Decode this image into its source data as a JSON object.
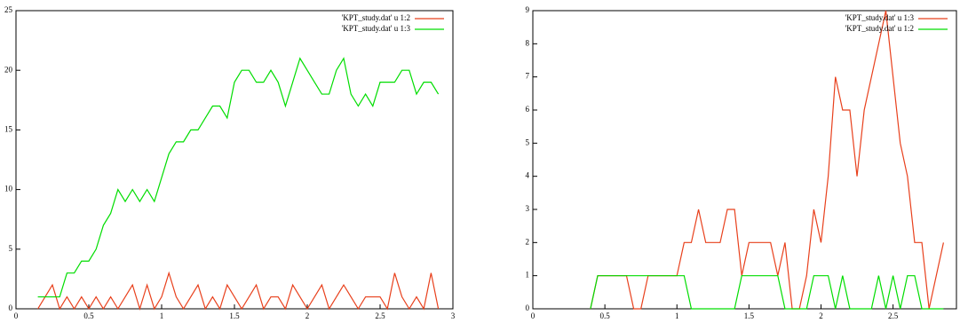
{
  "chart_data": [
    {
      "type": "line",
      "x": [
        0.15,
        0.2,
        0.25,
        0.3,
        0.35,
        0.4,
        0.45,
        0.5,
        0.55,
        0.6,
        0.65,
        0.7,
        0.75,
        0.8,
        0.85,
        0.9,
        0.95,
        1,
        1.05,
        1.1,
        1.15,
        1.2,
        1.25,
        1.3,
        1.35,
        1.4,
        1.45,
        1.5,
        1.55,
        1.6,
        1.65,
        1.7,
        1.75,
        1.8,
        1.85,
        1.9,
        1.95,
        2,
        2.05,
        2.1,
        2.15,
        2.2,
        2.25,
        2.3,
        2.35,
        2.4,
        2.45,
        2.5,
        2.55,
        2.6,
        2.65,
        2.7,
        2.75,
        2.8,
        2.85,
        2.9
      ],
      "series": [
        {
          "name": "'KPT_study.dat' u 1:2",
          "color": "#e8401c",
          "values": [
            0,
            1,
            2,
            0,
            1,
            0,
            1,
            0,
            1,
            0,
            1,
            0,
            1,
            2,
            0,
            2,
            0,
            1,
            3,
            1,
            0,
            1,
            2,
            0,
            1,
            0,
            2,
            1,
            0,
            1,
            2,
            0,
            1,
            1,
            0,
            2,
            1,
            0,
            1,
            2,
            0,
            1,
            2,
            1,
            0,
            1,
            1,
            1,
            0,
            3,
            1,
            0,
            1,
            0,
            3,
            0
          ]
        },
        {
          "name": "'KPT_study.dat' u 1:3",
          "color": "#00dd00",
          "values": [
            1,
            1,
            1,
            1,
            3,
            3,
            4,
            4,
            5,
            7,
            8,
            10,
            9,
            10,
            9,
            10,
            9,
            11,
            13,
            14,
            14,
            15,
            15,
            16,
            17,
            17,
            16,
            19,
            20,
            20,
            19,
            19,
            20,
            19,
            17,
            19,
            21,
            20,
            19,
            18,
            18,
            20,
            21,
            18,
            17,
            18,
            17,
            19,
            19,
            19,
            20,
            20,
            18,
            19,
            19,
            18
          ]
        }
      ],
      "xlim": [
        0,
        3
      ],
      "xticks": [
        0,
        0.5,
        1,
        1.5,
        2,
        2.5,
        3
      ],
      "ylim": [
        0,
        25
      ],
      "yticks": [
        0,
        5,
        10,
        15,
        20,
        25
      ],
      "legend": "top-right"
    },
    {
      "type": "line",
      "x": [
        0.4,
        0.45,
        0.5,
        0.55,
        0.6,
        0.65,
        0.7,
        0.75,
        0.8,
        0.85,
        0.9,
        0.95,
        1,
        1.05,
        1.1,
        1.15,
        1.2,
        1.25,
        1.3,
        1.35,
        1.4,
        1.45,
        1.5,
        1.55,
        1.6,
        1.65,
        1.7,
        1.75,
        1.8,
        1.85,
        1.9,
        1.95,
        2,
        2.05,
        2.1,
        2.15,
        2.2,
        2.25,
        2.3,
        2.35,
        2.4,
        2.45,
        2.5,
        2.55,
        2.6,
        2.65,
        2.7,
        2.75,
        2.8,
        2.85
      ],
      "series": [
        {
          "name": "'KPT_study.dat' u 1:3",
          "color": "#e8401c",
          "values": [
            0,
            1,
            1,
            1,
            1,
            1,
            0,
            0,
            1,
            1,
            1,
            1,
            1,
            2,
            2,
            3,
            2,
            2,
            2,
            3,
            3,
            1,
            2,
            2,
            2,
            2,
            1,
            2,
            0,
            0,
            1,
            3,
            2,
            4,
            7,
            6,
            6,
            4,
            6,
            7,
            8,
            9,
            7,
            5,
            4,
            2,
            2,
            0,
            1,
            2
          ]
        },
        {
          "name": "'KPT_study.dat' u 1:2",
          "color": "#00dd00",
          "values": [
            0,
            1,
            1,
            1,
            1,
            1,
            1,
            1,
            1,
            1,
            1,
            1,
            1,
            1,
            0,
            0,
            0,
            0,
            0,
            0,
            0,
            1,
            1,
            1,
            1,
            1,
            1,
            0,
            0,
            0,
            0,
            1,
            1,
            1,
            0,
            1,
            0,
            0,
            0,
            0,
            1,
            0,
            1,
            0,
            1,
            1,
            0,
            0,
            0,
            0
          ]
        }
      ],
      "xlim": [
        0,
        2.94
      ],
      "xticks": [
        0,
        0.5,
        1,
        1.5,
        2,
        2.5
      ],
      "ylim": [
        0,
        9
      ],
      "yticks": [
        0,
        1,
        2,
        3,
        4,
        5,
        6,
        7,
        8,
        9
      ],
      "legend": "top-right"
    }
  ]
}
